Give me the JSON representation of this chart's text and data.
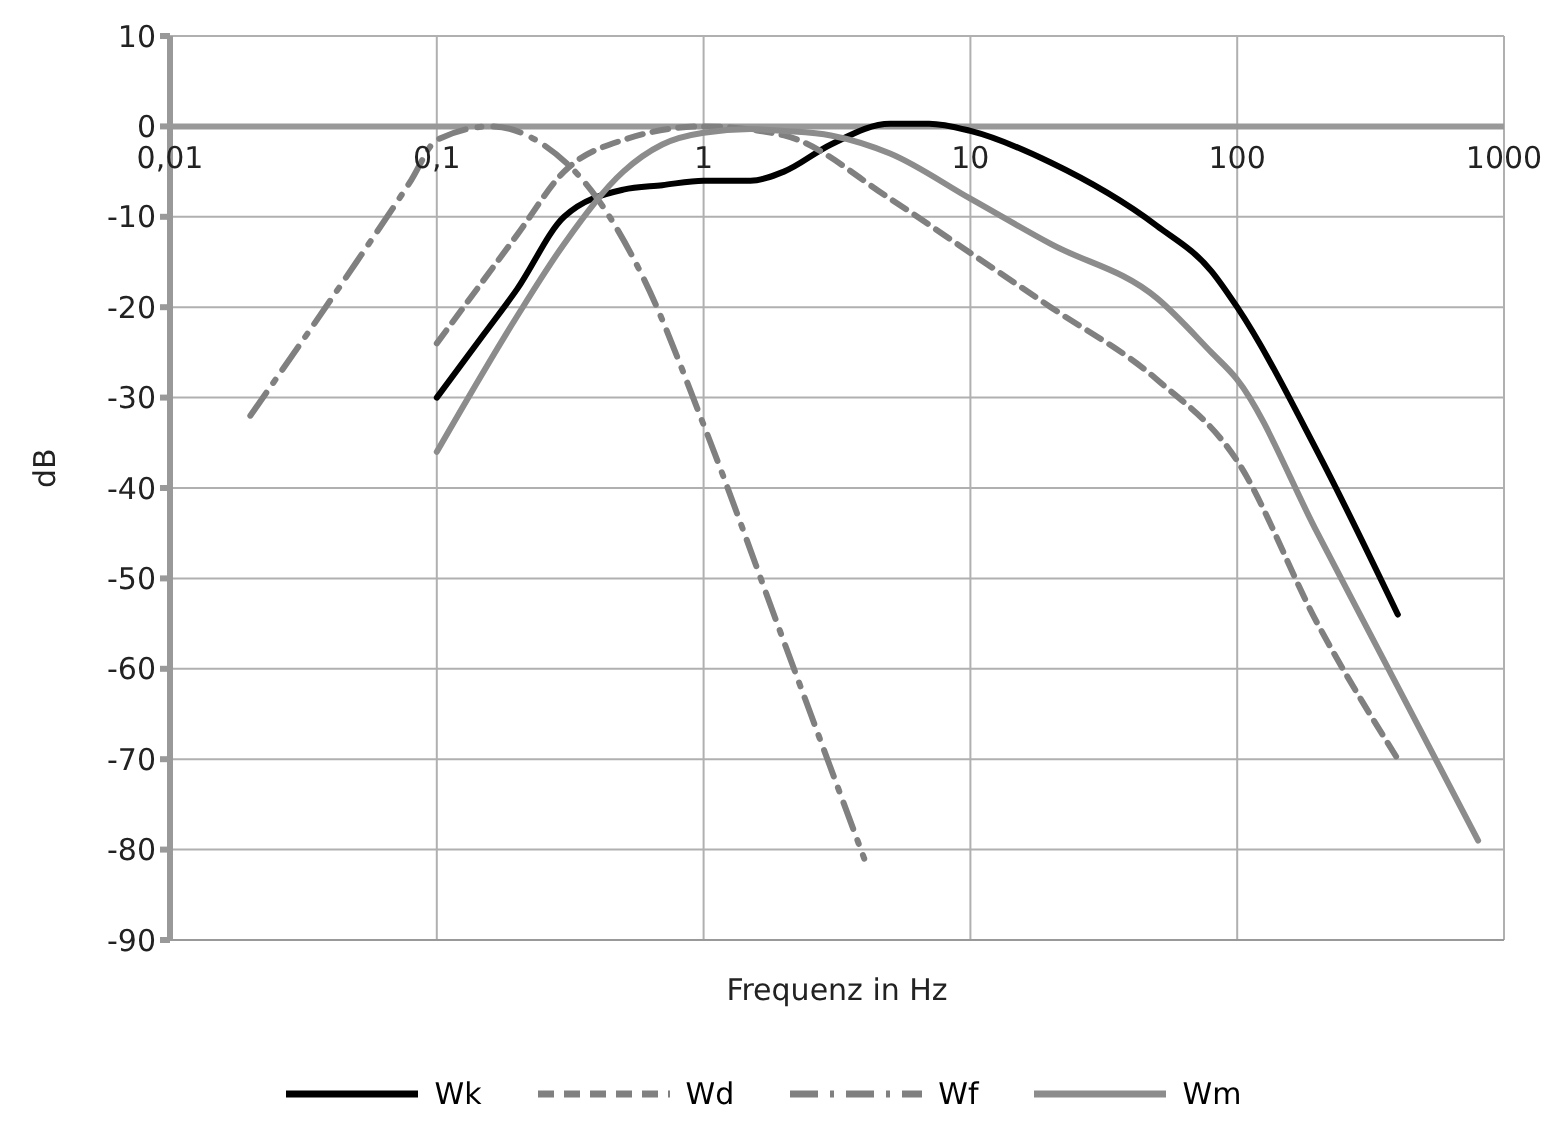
{
  "chart_data": {
    "type": "line",
    "xlabel": "Frequenz in Hz",
    "ylabel": "dB",
    "log": "x",
    "grid": true,
    "legend": "bottom",
    "marker": "none",
    "xlim": [
      0.01,
      1000
    ],
    "xticks": [
      {
        "value": 0.01,
        "label": "0,01"
      },
      {
        "value": 0.1,
        "label": "0,1"
      },
      1,
      10,
      100,
      1000
    ],
    "ylim": [
      -90,
      10
    ],
    "yticks": [
      10,
      0,
      -10,
      -20,
      -30,
      -40,
      -50,
      -60,
      -70,
      -80,
      -90
    ],
    "series": [
      {
        "name": "Wk",
        "color": "#000000",
        "line_style": "solid",
        "x": [
          0.1,
          0.15,
          0.2,
          0.3,
          0.5,
          0.7,
          1,
          1.5,
          2,
          3,
          5,
          7,
          10,
          20,
          50,
          80,
          100,
          200,
          400
        ],
        "values": [
          -30,
          -23,
          -18,
          -10,
          -7,
          -6.5,
          -6,
          -6,
          -5,
          -2,
          0.3,
          0.3,
          -0.5,
          -4,
          -11,
          -16,
          -20,
          -36,
          -54
        ]
      },
      {
        "name": "Wd",
        "color": "#808080",
        "line_style": "dashed",
        "x": [
          0.1,
          0.2,
          0.3,
          0.5,
          1,
          2,
          5,
          10,
          20,
          50,
          100,
          200,
          400
        ],
        "values": [
          -24,
          -12,
          -5,
          -1.5,
          0,
          -1,
          -8,
          -14,
          -20,
          -28,
          -37,
          -55,
          -70
        ]
      },
      {
        "name": "Wf",
        "color": "#808080",
        "line_style": "dashdot",
        "x": [
          0.02,
          0.05,
          0.08,
          0.1,
          0.16,
          0.25,
          0.4,
          0.6,
          1,
          2,
          4
        ],
        "values": [
          -32,
          -15,
          -6,
          -1.5,
          0,
          -2,
          -8,
          -17,
          -33,
          -57,
          -81
        ]
      },
      {
        "name": "Wm",
        "color": "#8c8c8c",
        "line_style": "solid",
        "x": [
          0.1,
          0.2,
          0.3,
          0.5,
          0.7,
          1,
          1.5,
          2,
          3,
          5,
          10,
          20,
          50,
          80,
          100,
          200,
          400,
          800
        ],
        "values": [
          -36,
          -21,
          -13,
          -5,
          -2,
          -0.7,
          -0.3,
          -0.5,
          -1,
          -3,
          -8,
          -13,
          -19,
          -25,
          -28,
          -45,
          -62,
          -79
        ]
      }
    ]
  }
}
